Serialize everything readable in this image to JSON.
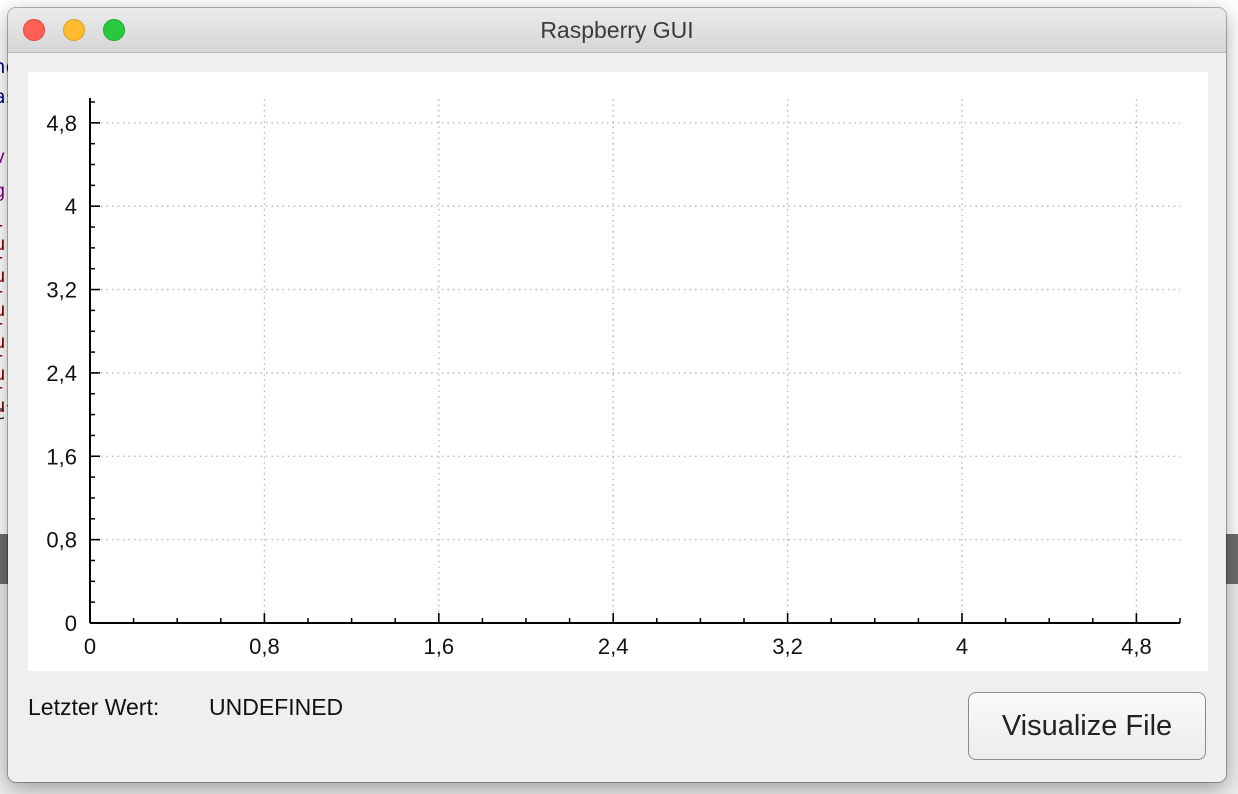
{
  "window": {
    "title": "Raspberry GUI"
  },
  "background_fragments": [
    {
      "text": "no",
      "color": "#00007f"
    },
    {
      "text": "as",
      "color": "#00007f"
    },
    {
      "text": "v",
      "color": "#7f007f"
    },
    {
      "text": "g",
      "color": "#7f007f"
    },
    {
      "text": "-u",
      "color": "#7f0000"
    },
    {
      "text": "-u",
      "color": "#7f0000"
    },
    {
      "text": "-u",
      "color": "#7f0000"
    },
    {
      "text": "-u",
      "color": "#7f0000"
    },
    {
      "text": "-u",
      "color": "#7f0000"
    },
    {
      "text": "-u",
      "color": "#7f0000"
    },
    {
      "text": "cl",
      "color": "#333333"
    }
  ],
  "chart_data": {
    "type": "line",
    "series": [],
    "xlim": [
      0,
      5
    ],
    "ylim": [
      0,
      5
    ],
    "x_ticks": [
      0,
      0.8,
      1.6,
      2.4,
      3.2,
      4,
      4.8
    ],
    "y_ticks": [
      0,
      0.8,
      1.6,
      2.4,
      3.2,
      4,
      4.8
    ],
    "x_tick_labels": [
      "0",
      "0,8",
      "1,6",
      "2,4",
      "3,2",
      "4",
      "4,8"
    ],
    "y_tick_labels": [
      "0",
      "0,8",
      "1,6",
      "2,4",
      "3,2",
      "4",
      "4,8"
    ],
    "minor_tick_step": 0.2,
    "grid": true,
    "grid_style": "dotted",
    "title": "",
    "xlabel": "",
    "ylabel": ""
  },
  "status": {
    "label": "Letzter Wert:",
    "value": "UNDEFINED"
  },
  "actions": {
    "visualize_label": "Visualize File"
  },
  "colors": {
    "close": "#fe5f57",
    "minimize": "#febc2e",
    "maximize": "#28c840",
    "window_bg": "#efefef",
    "plot_bg": "#ffffff",
    "grid": "#b4b4b4",
    "axis": "#000000"
  }
}
